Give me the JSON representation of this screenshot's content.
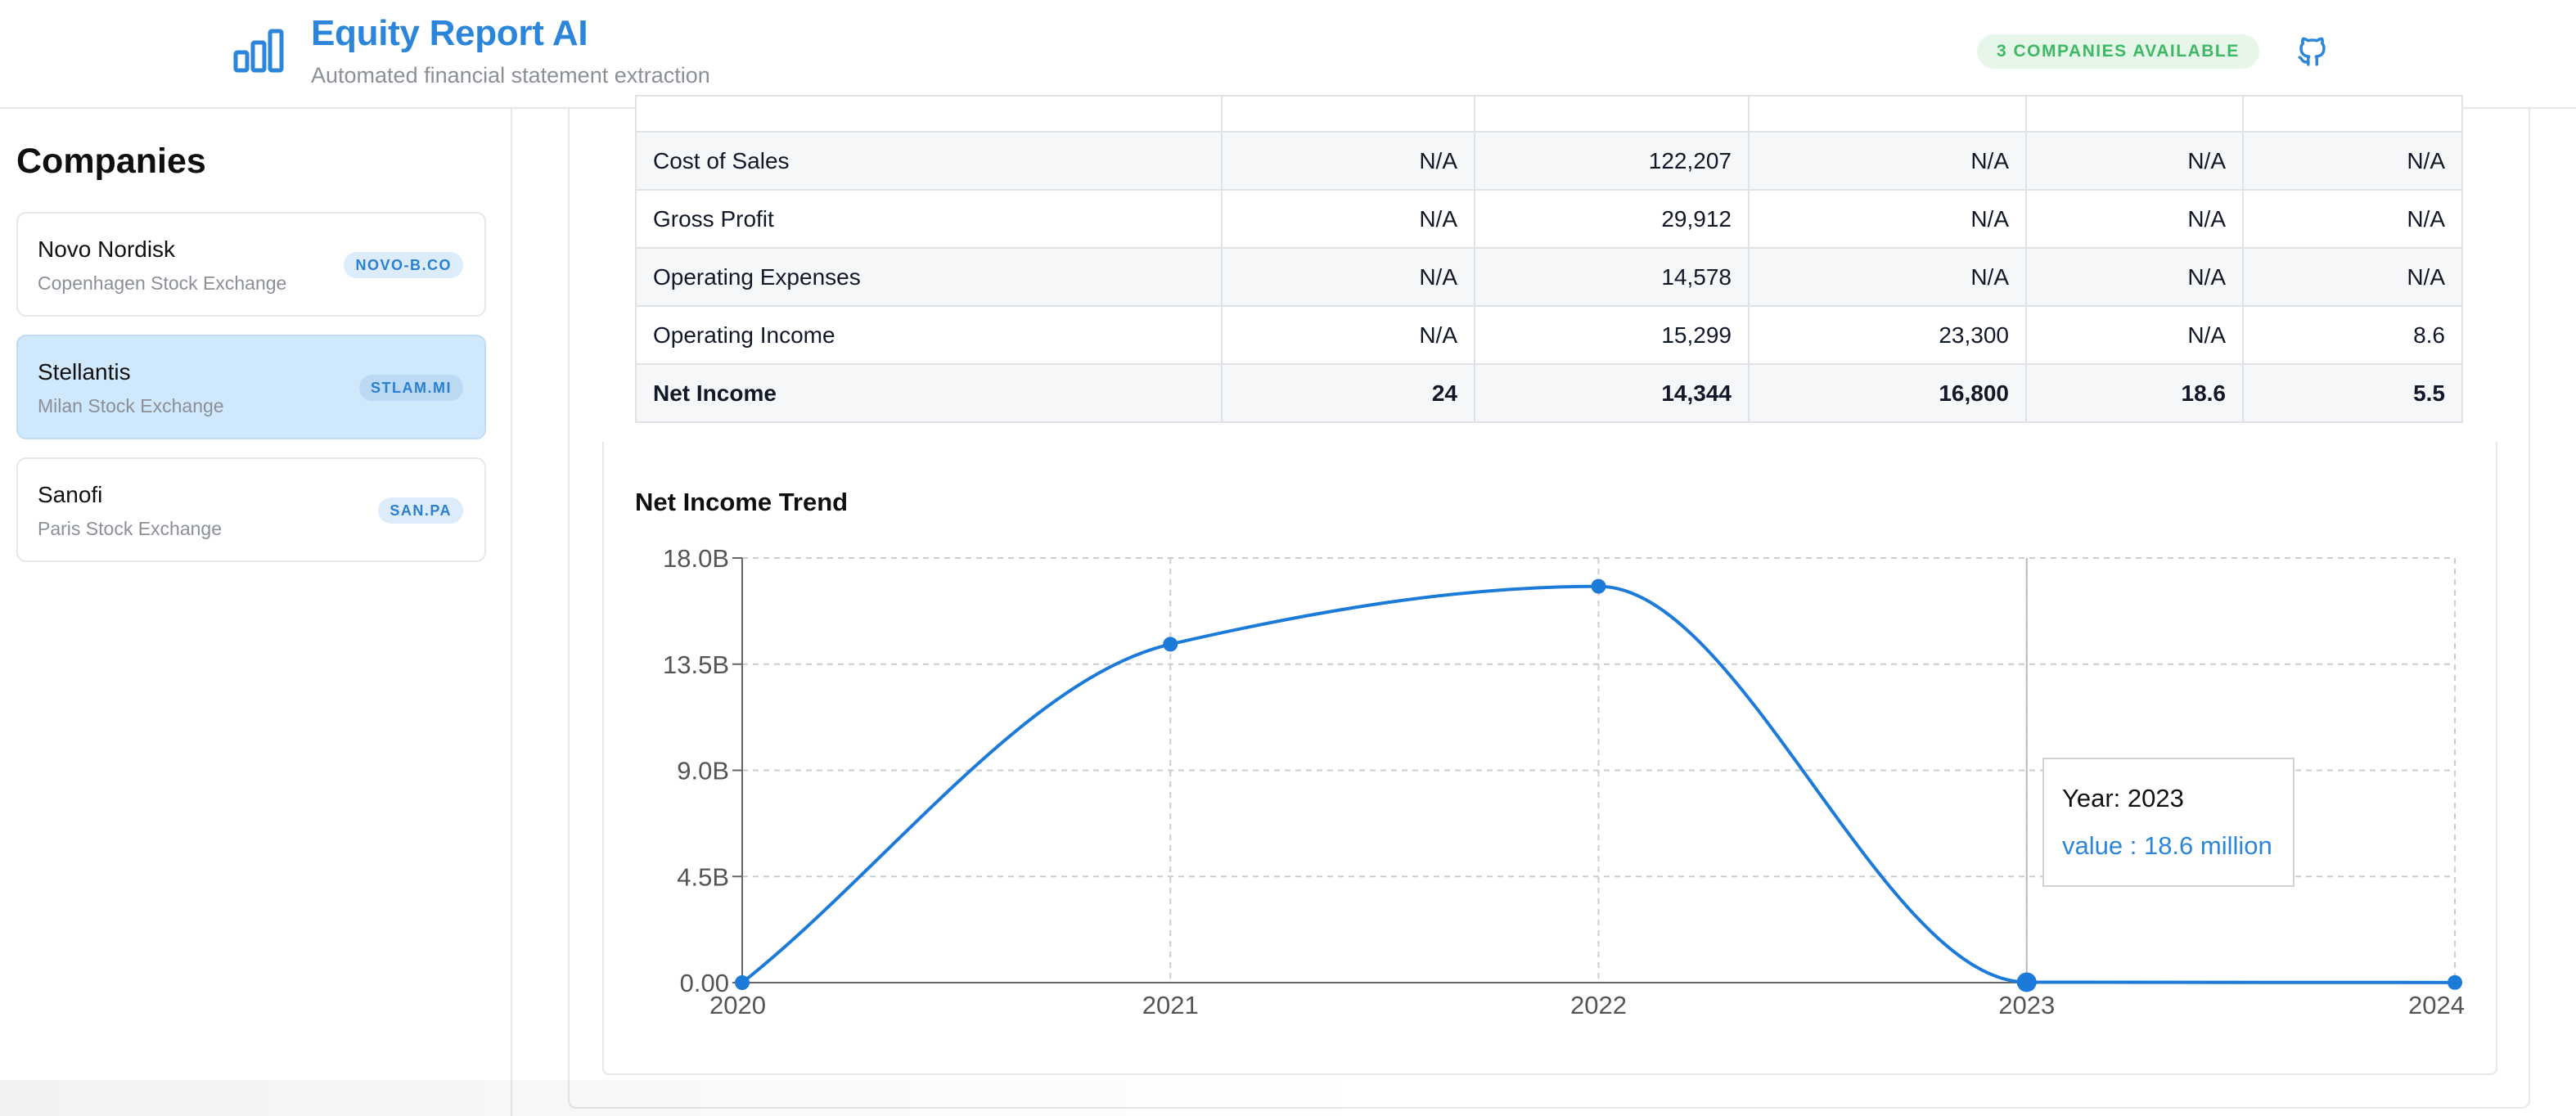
{
  "header": {
    "title": "Equity Report AI",
    "subtitle": "Automated financial statement extraction",
    "companies_badge": "3 COMPANIES AVAILABLE",
    "brand_icon": "bar-chart-icon",
    "repo_icon": "github-icon"
  },
  "sidebar": {
    "title": "Companies",
    "companies": [
      {
        "name": "Novo Nordisk",
        "exchange": "Copenhagen Stock Exchange",
        "ticker": "NOVO-B.CO",
        "selected": false
      },
      {
        "name": "Stellantis",
        "exchange": "Milan Stock Exchange",
        "ticker": "STLAM.MI",
        "selected": true
      },
      {
        "name": "Sanofi",
        "exchange": "Paris Stock Exchange",
        "ticker": "SAN.PA",
        "selected": false
      }
    ]
  },
  "table": {
    "rows": [
      {
        "metric": "",
        "values": [
          "",
          "",
          "",
          "",
          ""
        ]
      },
      {
        "metric": "Cost of Sales",
        "values": [
          "N/A",
          "122,207",
          "N/A",
          "N/A",
          "N/A"
        ]
      },
      {
        "metric": "Gross Profit",
        "values": [
          "N/A",
          "29,912",
          "N/A",
          "N/A",
          "N/A"
        ]
      },
      {
        "metric": "Operating Expenses",
        "values": [
          "N/A",
          "14,578",
          "N/A",
          "N/A",
          "N/A"
        ]
      },
      {
        "metric": "Operating Income",
        "values": [
          "N/A",
          "15,299",
          "23,300",
          "N/A",
          "8.6"
        ]
      },
      {
        "metric": "Net Income",
        "values": [
          "24",
          "14,344",
          "16,800",
          "18.6",
          "5.5"
        ]
      }
    ]
  },
  "chart_data": {
    "type": "line",
    "title": "Net Income Trend",
    "x": [
      "2020",
      "2021",
      "2022",
      "2023",
      "2024"
    ],
    "series": [
      {
        "values": [
          24,
          14344000000,
          16800000000,
          18600000,
          5500000
        ]
      }
    ],
    "y_tick_labels": [
      "0.00",
      "4.5B",
      "9.0B",
      "13.5B",
      "18.0B"
    ],
    "ylim": [
      0,
      18000000000
    ],
    "grid": true,
    "line_color": "#1c7ad9",
    "tooltip": {
      "title": "Year: 2023",
      "value": "value : 18.6 million"
    }
  }
}
